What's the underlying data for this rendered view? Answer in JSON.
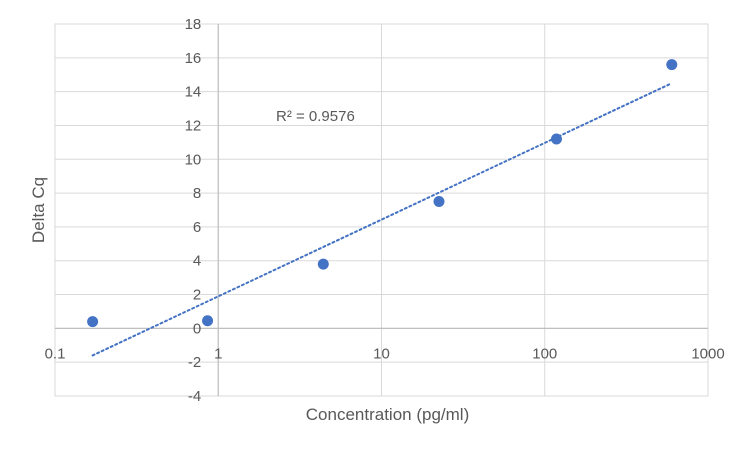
{
  "chart_data": {
    "type": "scatter",
    "xlabel": "Concentration (pg/ml)",
    "ylabel": "Delta Cq",
    "x_scale": "log",
    "xlim": [
      0.1,
      1000
    ],
    "ylim": [
      -4,
      18
    ],
    "x_ticks": [
      0.1,
      1,
      10,
      100,
      1000
    ],
    "x_tick_labels": [
      "0.1",
      "1",
      "10",
      "100",
      "1000"
    ],
    "y_ticks": [
      -4,
      -2,
      0,
      2,
      4,
      6,
      8,
      10,
      12,
      14,
      16,
      18
    ],
    "y_tick_labels": [
      "-4",
      "-2",
      "0",
      "2",
      "4",
      "6",
      "8",
      "10",
      "12",
      "14",
      "16",
      "18"
    ],
    "grid": true,
    "points": [
      {
        "x": 0.17,
        "y": 0.4
      },
      {
        "x": 0.86,
        "y": 0.45
      },
      {
        "x": 4.4,
        "y": 3.8
      },
      {
        "x": 22.5,
        "y": 7.5
      },
      {
        "x": 118,
        "y": 11.2
      },
      {
        "x": 600,
        "y": 15.6
      }
    ],
    "trendline": {
      "type": "log",
      "style": "dotted",
      "x_start": 0.17,
      "x_end": 600,
      "y_start": -1.6,
      "y_end": 14.5,
      "r_squared_label": "R² = 0.9576"
    },
    "colors": {
      "marker": "#4472C4",
      "trendline": "#4472C4",
      "grid": "#D9D9D9",
      "text": "#595959"
    }
  }
}
